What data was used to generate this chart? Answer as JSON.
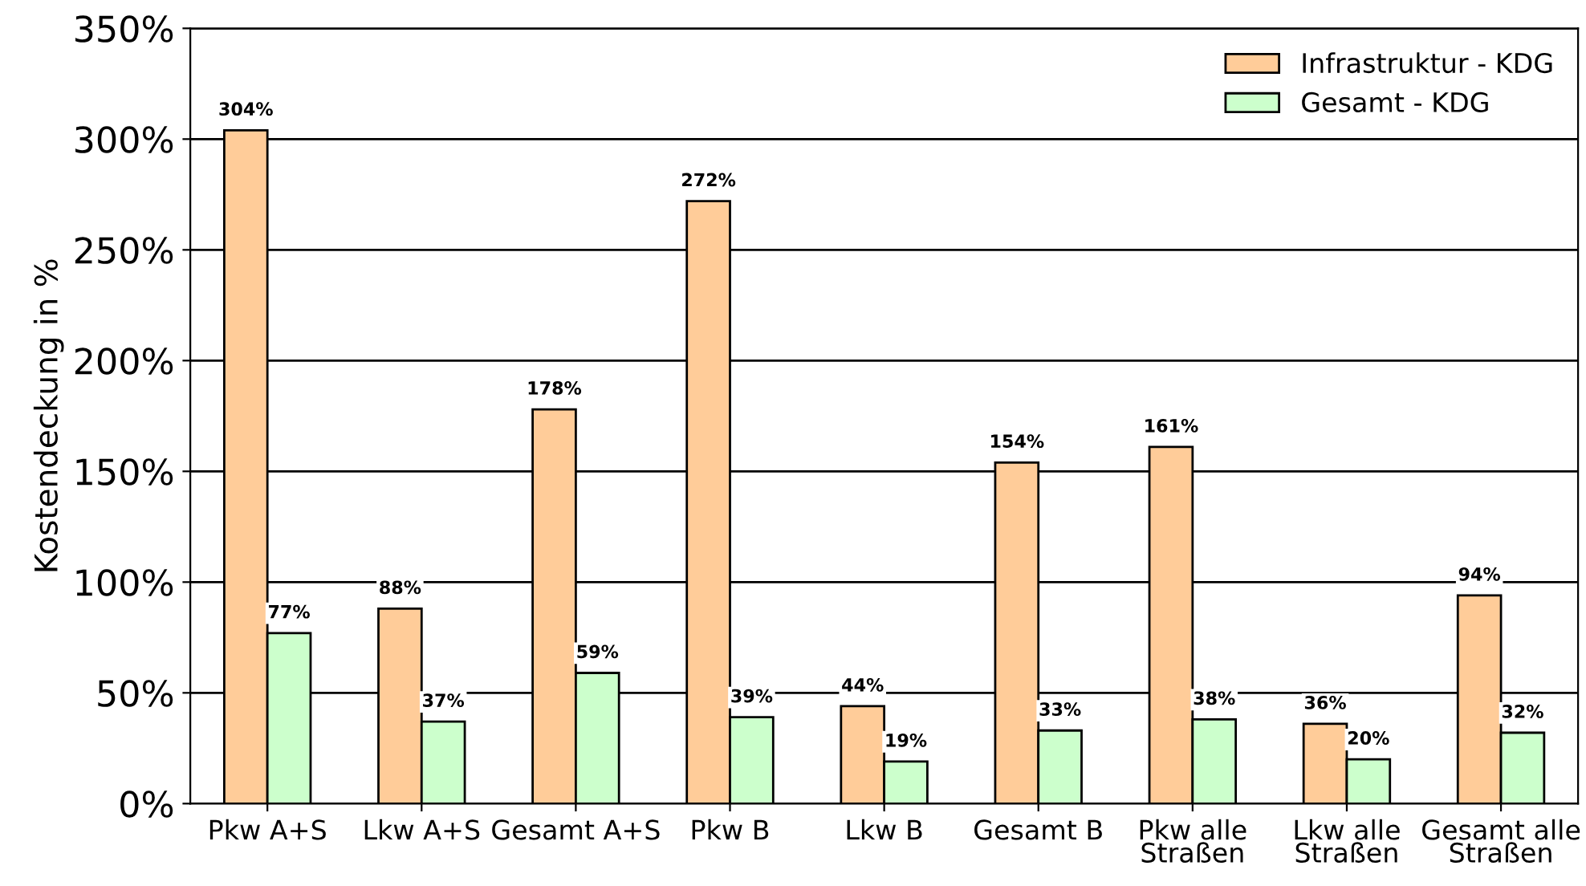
{
  "chart_data": {
    "type": "bar",
    "ylabel": "Kostendeckung in %",
    "categories": [
      "Pkw A+S",
      "Lkw A+S",
      "Gesamt A+S",
      "Pkw B",
      "Lkw B",
      "Gesamt B",
      "Pkw alle\nStraßen",
      "Lkw alle\nStraßen",
      "Gesamt alle\nStraßen"
    ],
    "series": [
      {
        "name": "Infrastruktur - KDG",
        "color": "#ffcc99",
        "values": [
          304,
          88,
          178,
          272,
          44,
          154,
          161,
          36,
          94
        ]
      },
      {
        "name": "Gesamt - KDG",
        "color": "#ccffcc",
        "values": [
          77,
          37,
          59,
          39,
          19,
          33,
          38,
          20,
          32
        ]
      }
    ],
    "ylim": [
      0,
      350
    ],
    "yticks": [
      {
        "value": 0,
        "label": "0%"
      },
      {
        "value": 50,
        "label": "50%"
      },
      {
        "value": 100,
        "label": "100%"
      },
      {
        "value": 150,
        "label": "150%"
      },
      {
        "value": 200,
        "label": "200%"
      },
      {
        "value": 250,
        "label": "250%"
      },
      {
        "value": 300,
        "label": "300%"
      },
      {
        "value": 350,
        "label": "350%"
      }
    ],
    "grid": "y",
    "legend": "top right",
    "value_labels": [
      [
        "304%",
        "88%",
        "178%",
        "272%",
        "44%",
        "154%",
        "161%",
        "36%",
        "94%"
      ],
      [
        "77%",
        "37%",
        "59%",
        "39%",
        "19%",
        "33%",
        "38%",
        "20%",
        "32%"
      ]
    ]
  }
}
